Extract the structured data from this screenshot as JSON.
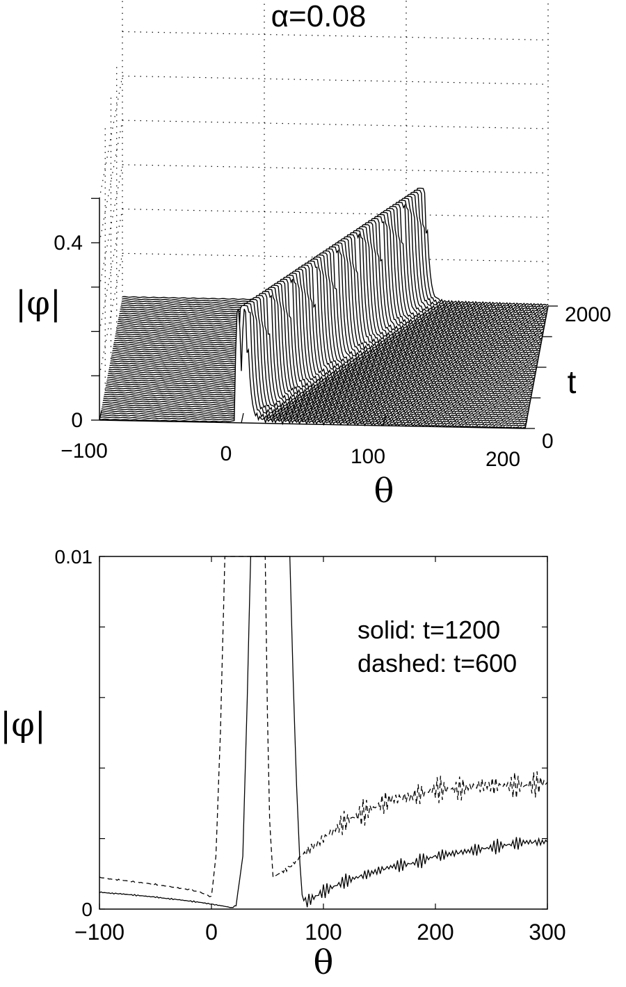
{
  "title": "α=0.08",
  "chart_data": [
    {
      "type": "waterfall",
      "ylabel": "|φ|",
      "xlabel": "θ",
      "tlabel": "t",
      "xticks": [
        "−100",
        "0",
        "100",
        "200"
      ],
      "yticks": [
        "0",
        "0.4"
      ],
      "tticks": [
        "0",
        "2000"
      ],
      "xlim": [
        -100,
        200
      ],
      "ylim": [
        0,
        0.4
      ],
      "tlim": [
        0,
        2000
      ],
      "num_slices": 60,
      "peak_height": 0.26,
      "peak_start_theta": 0,
      "peak_end_theta": 110
    },
    {
      "type": "line",
      "xlabel": "θ",
      "ylabel": "|φ|",
      "xlim": [
        -100,
        300
      ],
      "ylim": [
        0,
        0.01
      ],
      "xticks": [
        "−100",
        "0",
        "100",
        "200",
        "300"
      ],
      "yticks": [
        "0",
        "0.01"
      ],
      "annotations": [
        "solid: t=1200",
        "dashed: t=600"
      ],
      "series": [
        {
          "name": "t=1200",
          "style": "solid",
          "x": [
            -100,
            -90,
            -80,
            -70,
            -60,
            -50,
            -40,
            -30,
            -20,
            -10,
            0,
            10,
            18,
            22,
            28,
            32,
            35,
            70,
            73,
            76,
            79,
            81,
            84,
            90,
            100,
            120,
            140,
            160,
            180,
            200,
            220,
            240,
            260,
            280,
            300
          ],
          "y": [
            0.00048,
            0.00045,
            0.00043,
            0.0004,
            0.00037,
            0.00034,
            0.0003,
            0.00027,
            0.00023,
            0.00019,
            0.00014,
            9e-05,
            4e-05,
            0.0001,
            0.0015,
            0.006,
            0.01,
            0.01,
            0.0065,
            0.0035,
            0.0013,
            0.0004,
            0.0002,
            0.0003,
            0.0005,
            0.0008,
            0.001,
            0.0012,
            0.0013,
            0.0015,
            0.0016,
            0.0017,
            0.0018,
            0.0019,
            0.0019
          ]
        },
        {
          "name": "t=600",
          "style": "dashed",
          "x": [
            -100,
            -90,
            -80,
            -70,
            -60,
            -50,
            -40,
            -30,
            -20,
            -10,
            -5,
            0,
            4,
            8,
            12,
            48,
            50,
            52,
            55,
            60,
            70,
            80,
            100,
            120,
            140,
            160,
            180,
            200,
            220,
            240,
            260,
            280,
            300
          ],
          "y": [
            0.0009,
            0.00085,
            0.00082,
            0.00078,
            0.00074,
            0.0007,
            0.00065,
            0.0006,
            0.00055,
            0.00048,
            0.0004,
            0.00035,
            0.0015,
            0.005,
            0.01,
            0.01,
            0.0055,
            0.0025,
            0.0009,
            0.001,
            0.0012,
            0.0015,
            0.002,
            0.0025,
            0.0028,
            0.0031,
            0.0032,
            0.0034,
            0.0034,
            0.0035,
            0.0035,
            0.0035,
            0.0036
          ]
        }
      ]
    }
  ]
}
